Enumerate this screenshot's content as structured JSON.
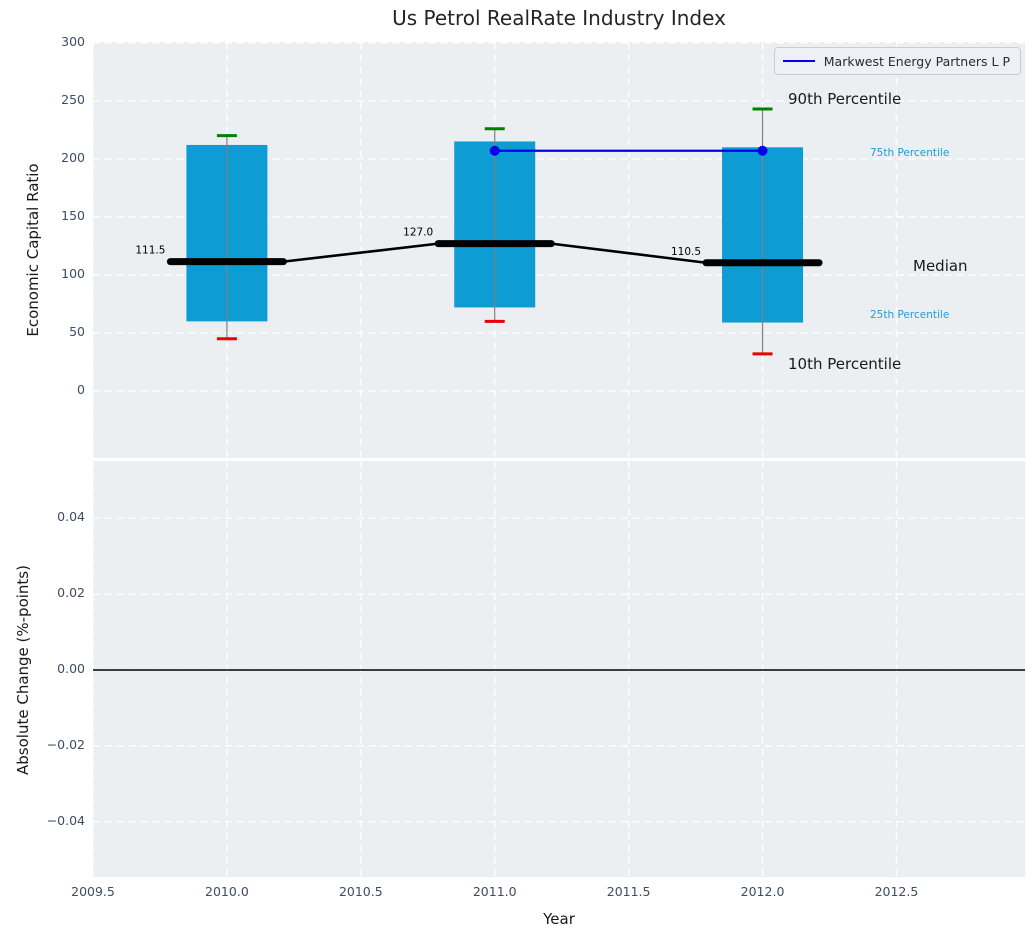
{
  "title": "Us Petrol RealRate Industry Index",
  "legend": {
    "label": "Markwest Energy Partners L P"
  },
  "x_axis": {
    "label": "Year",
    "xlim": [
      2009.5,
      2012.98
    ],
    "ticks": [
      {
        "v": 2009.5,
        "label": "2009.5"
      },
      {
        "v": 2010.0,
        "label": "2010.0"
      },
      {
        "v": 2010.5,
        "label": "2010.5"
      },
      {
        "v": 2011.0,
        "label": "2011.0"
      },
      {
        "v": 2011.5,
        "label": "2011.5"
      },
      {
        "v": 2012.0,
        "label": "2012.0"
      },
      {
        "v": 2012.5,
        "label": "2012.5"
      }
    ]
  },
  "annotations": {
    "p90": {
      "text": "90th Percentile"
    },
    "p75": {
      "text": "75th Percentile"
    },
    "median": {
      "text": "Median"
    },
    "p25": {
      "text": "25th Percentile"
    },
    "p10": {
      "text": "10th Percentile"
    }
  },
  "colors": {
    "bar": "#0d9cd3",
    "whisker": "#808080",
    "cap_top": "#008000",
    "cap_bottom": "#ea0000",
    "median": "#000000",
    "company_line": "#0000ee",
    "cyan_label": "#1a9fd6",
    "tick_text": "#3e4d62",
    "plot_bg": "#eceff1",
    "grid": "#ffffff",
    "zero_line": "#000000"
  },
  "chart_data": [
    {
      "type": "bar",
      "title": "Us Petrol RealRate Industry Index",
      "xlabel": "Year",
      "ylabel": "Economic Capital Ratio",
      "x": [
        2010,
        2011,
        2012
      ],
      "series": [
        {
          "name": "90th Percentile",
          "values": [
            220,
            226,
            243
          ]
        },
        {
          "name": "75th Percentile",
          "values": [
            212,
            215,
            210
          ]
        },
        {
          "name": "Median",
          "values": [
            111.5,
            127.0,
            110.5
          ]
        },
        {
          "name": "25th Percentile",
          "values": [
            60,
            72,
            59
          ]
        },
        {
          "name": "10th Percentile",
          "values": [
            45,
            60,
            32
          ]
        },
        {
          "name": "Markwest Energy Partners L P",
          "x": [
            2011,
            2012
          ],
          "values": [
            207,
            207
          ]
        }
      ],
      "median_labels": [
        "111.5",
        "127.0",
        "110.5"
      ],
      "ylim": [
        -57.7,
        300.7
      ],
      "yticks": [
        {
          "v": 300,
          "label": "300"
        },
        {
          "v": 250,
          "label": "250"
        },
        {
          "v": 200,
          "label": "200"
        },
        {
          "v": 150,
          "label": "150"
        },
        {
          "v": 100,
          "label": "100"
        },
        {
          "v": 50,
          "label": "50"
        },
        {
          "v": 0,
          "label": "0"
        }
      ],
      "grid": true,
      "legend_position": "upper right"
    },
    {
      "type": "line",
      "xlabel": "Year",
      "ylabel": "Absolute Change (%-points)",
      "x": [],
      "series": [],
      "zero_line": 0.0,
      "ylim": [
        -0.0546,
        0.0551
      ],
      "yticks": [
        {
          "v": 0.04,
          "label": "0.04"
        },
        {
          "v": 0.02,
          "label": "0.02"
        },
        {
          "v": 0.0,
          "label": "0.00"
        },
        {
          "v": -0.02,
          "label": "−0.02"
        },
        {
          "v": -0.04,
          "label": "−0.04"
        }
      ],
      "grid": true
    }
  ]
}
